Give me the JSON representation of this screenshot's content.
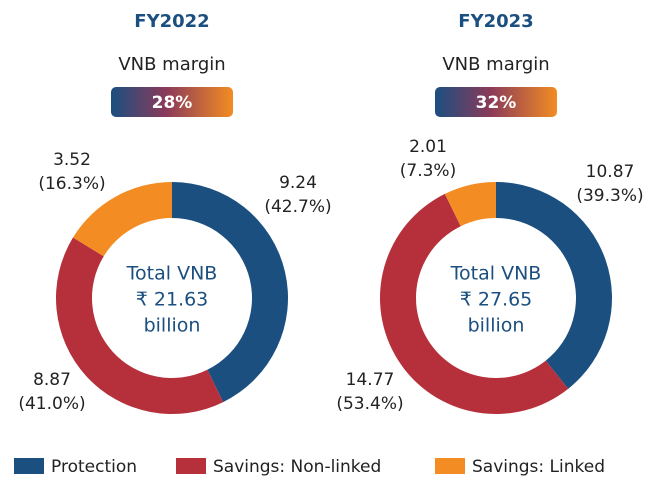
{
  "chart_data": [
    {
      "type": "pie",
      "title": "FY2022",
      "subtitle": "VNB margin",
      "badge": "28%",
      "categories": [
        "Protection",
        "Savings: Non-linked",
        "Savings: Linked"
      ],
      "colors": [
        "#1b4f80",
        "#b5303a",
        "#f28c23"
      ],
      "values": [
        9.24,
        8.87,
        3.52
      ],
      "percent_values": [
        42.7,
        41.0,
        16.3
      ],
      "percent_labels": [
        "(42.7%)",
        "(41.0%)",
        "(16.3%)"
      ],
      "center_text": [
        "Total VNB",
        "₹ 21.63",
        "billion"
      ]
    },
    {
      "type": "pie",
      "title": "FY2023",
      "subtitle": "VNB margin",
      "badge": "32%",
      "categories": [
        "Protection",
        "Savings: Non-linked",
        "Savings: Linked"
      ],
      "colors": [
        "#1b4f80",
        "#b5303a",
        "#f28c23"
      ],
      "values": [
        10.87,
        14.77,
        2.01
      ],
      "percent_values": [
        39.3,
        53.4,
        7.3
      ],
      "percent_labels": [
        "(39.3%)",
        "(53.4%)",
        "(7.3%)"
      ],
      "center_text": [
        "Total VNB",
        "₹ 27.65",
        "billion"
      ]
    }
  ]
}
